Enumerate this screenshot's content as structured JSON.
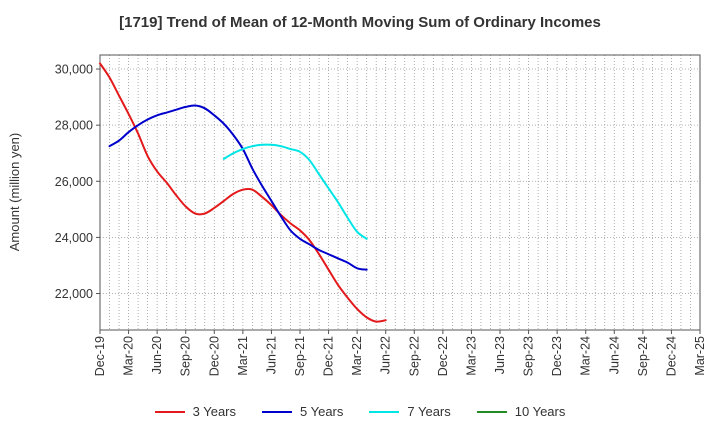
{
  "chart_data": {
    "type": "line",
    "title": "[1719]  Trend of Mean of 12-Month Moving Sum of Ordinary Incomes",
    "xlabel": "",
    "ylabel": "Amount (million yen)",
    "ylim": [
      20700,
      30500
    ],
    "y_ticks": [
      22000,
      24000,
      26000,
      28000,
      30000
    ],
    "y_tick_labels": [
      "22,000",
      "24,000",
      "26,000",
      "28,000",
      "30,000"
    ],
    "x_tick_labels": [
      "Dec-19",
      "Mar-20",
      "Jun-20",
      "Sep-20",
      "Dec-20",
      "Mar-21",
      "Jun-21",
      "Sep-21",
      "Dec-21",
      "Mar-22",
      "Jun-22",
      "Sep-22",
      "Dec-22",
      "Mar-23",
      "Jun-23",
      "Sep-23",
      "Dec-23",
      "Mar-24",
      "Jun-24",
      "Sep-24",
      "Dec-24",
      "Mar-25"
    ],
    "grid": true,
    "legend_position": "bottom",
    "series": [
      {
        "name": "3 Years",
        "color": "#e31a1c",
        "start_index": 0,
        "values": [
          30200,
          29700,
          29050,
          28400,
          27700,
          26900,
          26350,
          25950,
          25500,
          25100,
          24850,
          24850,
          25050,
          25300,
          25550,
          25700,
          25700,
          25450,
          25150,
          24800,
          24500,
          24250,
          23900,
          23400,
          22850,
          22300,
          21850,
          21450,
          21150,
          21000,
          21050
        ]
      },
      {
        "name": "5 Years",
        "color": "#0000cc",
        "start_index": 1,
        "values": [
          27250,
          27450,
          27750,
          28000,
          28200,
          28350,
          28450,
          28550,
          28650,
          28700,
          28600,
          28350,
          28050,
          27650,
          27150,
          26450,
          25850,
          25300,
          24750,
          24250,
          23950,
          23750,
          23550,
          23400,
          23250,
          23100,
          22900,
          22850
        ]
      },
      {
        "name": "7 Years",
        "color": "#00e5e5",
        "start_index": 13,
        "values": [
          26800,
          27000,
          27150,
          27250,
          27300,
          27300,
          27250,
          27150,
          27050,
          26750,
          26250,
          25750,
          25250,
          24700,
          24200,
          23950
        ]
      },
      {
        "name": "10 Years",
        "color": "#228b22",
        "start_index": 0,
        "values": []
      }
    ]
  }
}
